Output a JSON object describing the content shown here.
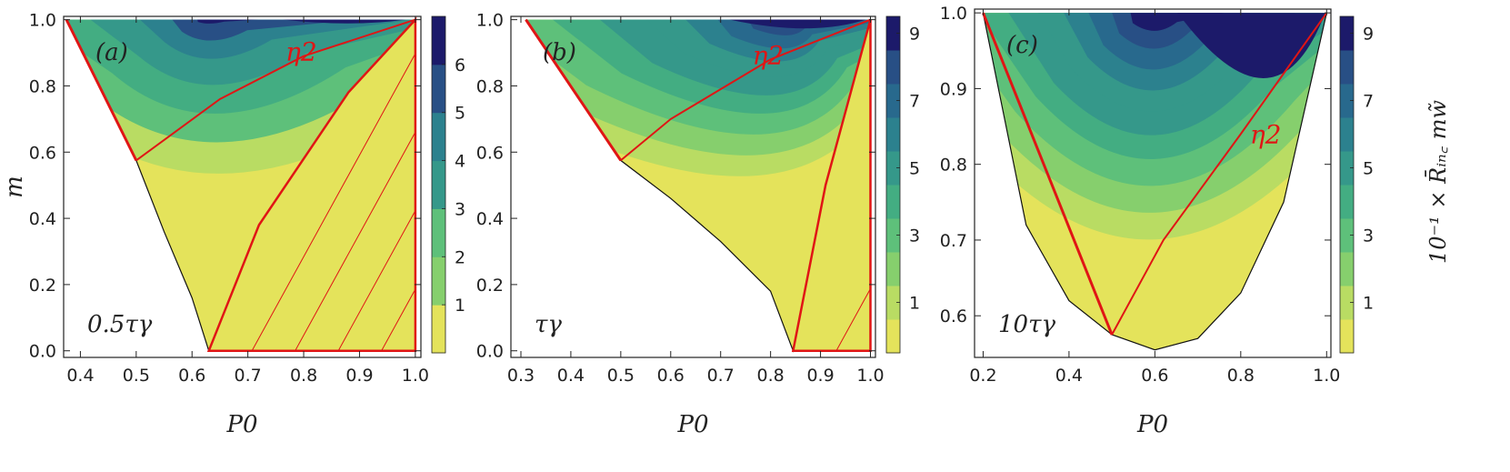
{
  "colors": {
    "levels": [
      "#e4e35b",
      "#b9dc63",
      "#86cf6d",
      "#5ec07a",
      "#43ad82",
      "#35988a",
      "#2c818e",
      "#28698d",
      "#284f85",
      "#1c1a6a"
    ],
    "boundary": "#e01515",
    "axis": "#222222"
  },
  "colorbar_title": "10⁻¹ × R̄ᵢₙ꜀ mw̃",
  "chart_data": [
    {
      "type": "contour",
      "panel_label": "(a)",
      "tau_label": "0.5τγ",
      "region_label": "η2",
      "xlabel": "P0",
      "ylabel": "m",
      "xlim": [
        0.37,
        1.01
      ],
      "ylim": [
        -0.02,
        1.01
      ],
      "xticks": [
        "0.4",
        "0.5",
        "0.6",
        "0.7",
        "0.8",
        "0.9",
        "1.0"
      ],
      "yticks": [
        "0.0",
        "0.2",
        "0.4",
        "0.6",
        "0.8",
        "1.0"
      ],
      "colorbar_ticks": [
        "1",
        "2",
        "3",
        "4",
        "5",
        "6"
      ],
      "colorbar_levels": 7,
      "lower_boundary": [
        [
          0.375,
          1.0
        ],
        [
          0.5,
          0.575
        ],
        [
          0.55,
          0.36
        ],
        [
          0.6,
          0.16
        ],
        [
          0.63,
          0.0
        ]
      ],
      "vertex": [
        0.63,
        0.41
      ],
      "cap_dip": 0.985,
      "contour_rows": [
        0.41,
        0.53,
        0.64,
        0.75,
        0.85,
        0.92,
        0.985
      ],
      "eta_path": [
        [
          0.5,
          0.575
        ],
        [
          0.65,
          0.76
        ],
        [
          0.8,
          0.89
        ],
        [
          1.0,
          1.0
        ]
      ],
      "hatch_region": [
        [
          0.63,
          0.0
        ],
        [
          1.0,
          0.0
        ],
        [
          1.0,
          1.0
        ],
        [
          0.88,
          0.78
        ],
        [
          0.72,
          0.38
        ]
      ],
      "hatch_lines": 8
    },
    {
      "type": "contour",
      "panel_label": "(b)",
      "tau_label": "τγ",
      "region_label": "η2",
      "xlabel": "P0",
      "ylabel": "",
      "xlim": [
        0.28,
        1.01
      ],
      "ylim": [
        -0.02,
        1.01
      ],
      "xticks": [
        "0.3",
        "0.4",
        "0.5",
        "0.6",
        "0.7",
        "0.8",
        "0.9",
        "1.0"
      ],
      "yticks": [
        "0.0",
        "0.2",
        "0.4",
        "0.6",
        "0.8",
        "1.0"
      ],
      "colorbar_ticks": [
        "1",
        "3",
        "5",
        "7",
        "9"
      ],
      "colorbar_levels": 10,
      "lower_boundary": [
        [
          0.31,
          1.0
        ],
        [
          0.5,
          0.575
        ],
        [
          0.6,
          0.46
        ],
        [
          0.7,
          0.33
        ],
        [
          0.8,
          0.18
        ],
        [
          0.845,
          0.0
        ]
      ],
      "vertex": [
        0.845,
        0.4
      ],
      "cap_dip": 0.97,
      "contour_rows": [
        0.4,
        0.48,
        0.56,
        0.64,
        0.71,
        0.78,
        0.84,
        0.89,
        0.94,
        0.98
      ],
      "eta_path": [
        [
          0.5,
          0.575
        ],
        [
          0.6,
          0.7
        ],
        [
          0.8,
          0.88
        ],
        [
          1.0,
          1.0
        ]
      ],
      "hatch_region": [
        [
          0.845,
          0.0
        ],
        [
          1.0,
          0.0
        ],
        [
          1.0,
          1.0
        ],
        [
          0.91,
          0.5
        ]
      ],
      "hatch_lines": 5
    },
    {
      "type": "contour",
      "panel_label": "(c)",
      "tau_label": "10τγ",
      "region_label": "η2",
      "xlabel": "P0",
      "ylabel": "",
      "xlim": [
        0.18,
        1.01
      ],
      "ylim": [
        0.545,
        1.005
      ],
      "xticks": [
        "0.2",
        "0.4",
        "0.6",
        "0.8",
        "1.0"
      ],
      "yticks": [
        "0.6",
        "0.7",
        "0.8",
        "0.9",
        "1.0"
      ],
      "colorbar_ticks": [
        "1",
        "3",
        "5",
        "7",
        "9"
      ],
      "colorbar_levels": 10,
      "lower_boundary": [
        [
          0.2,
          1.0
        ],
        [
          0.3,
          0.72
        ],
        [
          0.4,
          0.62
        ],
        [
          0.5,
          0.575
        ],
        [
          0.6,
          0.555
        ],
        [
          0.7,
          0.57
        ],
        [
          0.8,
          0.63
        ],
        [
          0.9,
          0.75
        ],
        [
          1.0,
          1.0
        ]
      ],
      "vertex": [
        0.6,
        0.62
      ],
      "cap_dip": 0.91,
      "contour_rows": [
        0.62,
        0.665,
        0.71,
        0.755,
        0.795,
        0.835,
        0.87,
        0.905,
        0.94,
        0.97
      ],
      "eta_path": [
        [
          0.5,
          0.575
        ],
        [
          0.62,
          0.7
        ],
        [
          0.8,
          0.84
        ],
        [
          1.0,
          1.0
        ]
      ],
      "hatch_region": [],
      "hatch_lines": 0
    }
  ]
}
